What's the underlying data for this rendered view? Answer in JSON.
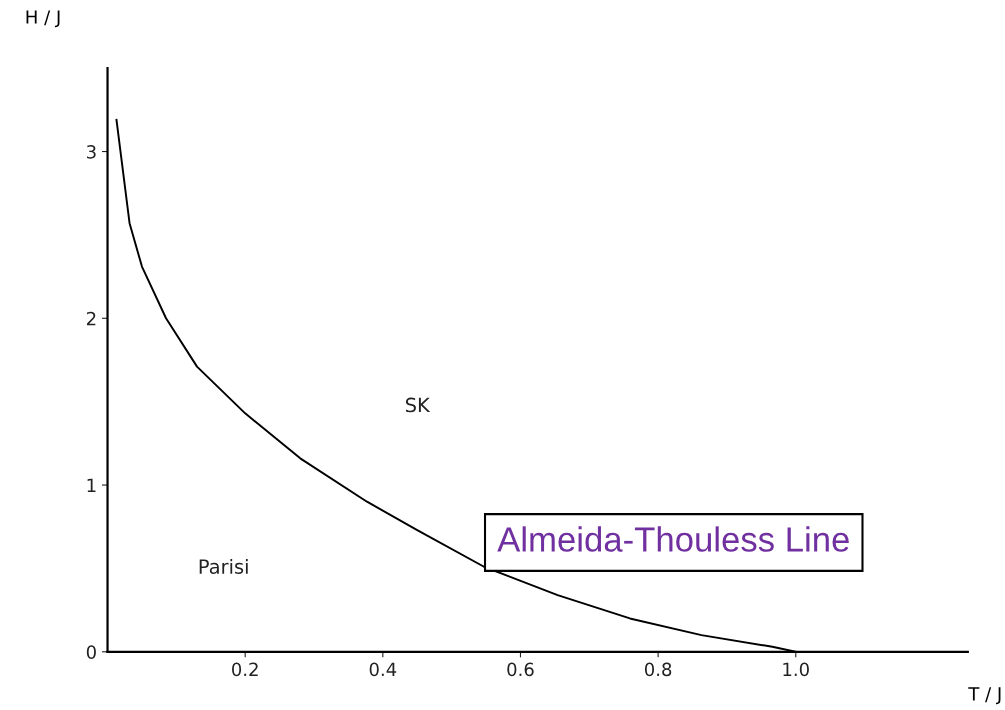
{
  "chart_data": {
    "type": "line",
    "xlabel": "T / J",
    "ylabel": "H / J",
    "x": [
      0.013,
      0.032,
      0.05,
      0.085,
      0.13,
      0.2,
      0.28,
      0.377,
      0.45,
      0.547,
      0.654,
      0.759,
      0.863,
      0.966,
      1.0
    ],
    "series": [
      {
        "color": "#000000",
        "values": [
          3.19,
          2.57,
          2.31,
          2.0,
          1.71,
          1.43,
          1.16,
          0.9,
          0.73,
          0.51,
          0.34,
          0.2,
          0.1,
          0.03,
          0.0
        ]
      }
    ],
    "xlim": [
      0,
      1.25
    ],
    "ylim": [
      0,
      3.5
    ],
    "xticks": [
      {
        "value": 0.2,
        "label": "0.2"
      },
      {
        "value": 0.4,
        "label": "0.4"
      },
      {
        "value": 0.6,
        "label": "0.6"
      },
      {
        "value": 0.8,
        "label": "0.8"
      },
      {
        "value": 1.0,
        "label": "1.0"
      }
    ],
    "yticks": [
      0,
      1,
      2,
      3
    ],
    "annotations": [
      "SK",
      "Parisi",
      {
        "text": "Almeida-Thouless Line",
        "x": 0.55,
        "y": 0.5
      }
    ],
    "grid": false,
    "legend": false,
    "marker": "none",
    "line_style": "solid"
  }
}
